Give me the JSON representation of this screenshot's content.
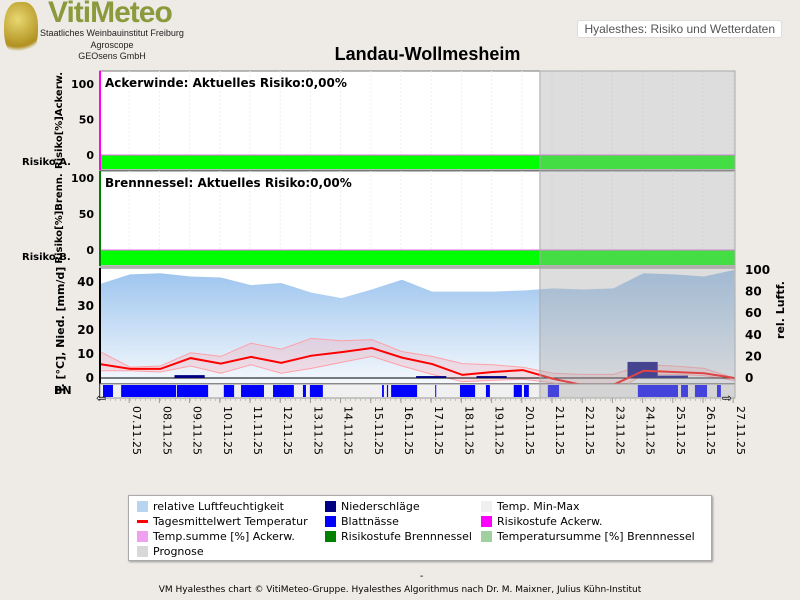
{
  "header": {
    "logo": "VitiMeteo",
    "orgs": [
      "Staatliches Weinbauinstitut Freiburg",
      "Agroscope",
      "GEOsens GmbH"
    ],
    "app_button": "Hyalesthes: Risiko und Wetterdaten"
  },
  "title": "Landau-Wollmesheim",
  "chart_data": [
    {
      "type": "area",
      "title": "Ackerwinde: Aktuelles Risiko:0,00%",
      "ylabel": "Risiko[%]Ackerw.",
      "row_label": "Risiko A.",
      "ylim": [
        0,
        100
      ],
      "yticks": [
        "100",
        "50",
        "0"
      ],
      "risk_level": "low",
      "risk_color": "#00ff00",
      "current_risk": 0
    },
    {
      "type": "area",
      "title": "Brennnessel: Aktuelles Risiko:0,00%",
      "ylabel": "Risiko[%]Brenn.",
      "row_label": "Risiko B.",
      "ylim": [
        0,
        100
      ],
      "yticks": [
        "100",
        "50",
        "0"
      ],
      "risk_level": "low",
      "risk_color": "#00ff00",
      "current_risk": 0
    },
    {
      "type": "line",
      "ylabel": "T. [°C], Nied. [mm/d]",
      "ylabel2": "rel. Luftf.",
      "row_label": "BN",
      "ylim": [
        -5,
        45
      ],
      "ylim2": [
        0,
        100
      ],
      "yticks": [
        "40",
        "30",
        "20",
        "10",
        "0"
      ],
      "yticks2": [
        "100",
        "80",
        "60",
        "40",
        "20",
        "0"
      ],
      "categories": [
        "07.11.25",
        "08.11.25",
        "09.11.25",
        "10.11.25",
        "11.11.25",
        "12.11.25",
        "13.11.25",
        "14.11.25",
        "15.11.25",
        "16.11.25",
        "17.11.25",
        "18.11.25",
        "19.11.25",
        "20.11.25",
        "21.11.25",
        "22.11.25",
        "23.11.25",
        "24.11.25",
        "25.11.25",
        "26.11.25",
        "27.11.25"
      ],
      "forecast_start_day": 14.6,
      "humidity": [
        87,
        96,
        97,
        94,
        93,
        86,
        88,
        79,
        74,
        82,
        91,
        80,
        80,
        80,
        81,
        83,
        82,
        83,
        97,
        96,
        94,
        100
      ],
      "temp_mean": [
        5.8,
        3.8,
        3.8,
        8.3,
        6,
        8.8,
        6.3,
        9.3,
        10.8,
        12.5,
        8.5,
        5.8,
        1.3,
        2.5,
        3.3,
        -0.3,
        -3,
        -2.8,
        3,
        2.5,
        2,
        0
      ],
      "temp_max": [
        11,
        4.5,
        5,
        10.5,
        9,
        14.5,
        12,
        16.5,
        15.5,
        16,
        11,
        9,
        6,
        5.5,
        4.5,
        2,
        1.5,
        1.5,
        5.5,
        5,
        4,
        0
      ],
      "temp_min": [
        3,
        3,
        2.5,
        5,
        2,
        5.5,
        2,
        4,
        6.5,
        9,
        5,
        1.5,
        -1.5,
        -1,
        -0.5,
        -2,
        -5,
        -6,
        1.5,
        1.5,
        1,
        -1
      ],
      "precip": [
        {
          "from": 2.5,
          "to": 3.5,
          "mm": 1.2
        },
        {
          "from": 10.5,
          "to": 11.5,
          "mm": 0.8
        },
        {
          "from": 12.5,
          "to": 13.5,
          "mm": 0.8
        },
        {
          "from": 17.5,
          "to": 18.5,
          "mm": 6.7
        },
        {
          "from": 18.5,
          "to": 19.5,
          "mm": 1
        }
      ],
      "leaf_wetness": [
        [
          0.1,
          0.43
        ],
        [
          0.7,
          2.52
        ],
        [
          2.55,
          3.58
        ],
        [
          4.1,
          4.44
        ],
        [
          4.67,
          5.43
        ],
        [
          5.73,
          6.42
        ],
        [
          6.72,
          6.82
        ],
        [
          6.95,
          7.38
        ],
        [
          9.34,
          9.4
        ],
        [
          9.5,
          9.54
        ],
        [
          9.64,
          10.5
        ],
        [
          11.1,
          11.13
        ],
        [
          11.92,
          12.42
        ],
        [
          12.78,
          12.91
        ],
        [
          13.7,
          13.97
        ],
        [
          14.04,
          14.2
        ],
        [
          14.83,
          15.2
        ],
        [
          17.81,
          19.14
        ],
        [
          19.24,
          19.47
        ],
        [
          19.7,
          20.1
        ],
        [
          20.43,
          20.56
        ]
      ]
    }
  ],
  "legend": [
    {
      "label": "relative Luftfeuchtigkeit",
      "color": "#b8d4f0"
    },
    {
      "label": "Niederschläge",
      "color": "#000080"
    },
    {
      "label": "Temp. Min-Max",
      "color": "#f0f0f0"
    },
    {
      "label": "Tagesmittelwert Temperatur",
      "color": "#ff0000"
    },
    {
      "label": "Blattnässe",
      "color": "#0000ff"
    },
    {
      "label": "Risikostufe Ackerw.",
      "color": "#ff00ff"
    },
    {
      "label": "Temp.summe [%] Ackerw.",
      "color": "#f0a0f0"
    },
    {
      "label": "Risikostufe Brennnessel",
      "color": "#008000"
    },
    {
      "label": "Temperatursumme [%] Brennnessel",
      "color": "#a0d0a0"
    },
    {
      "label": "Prognose",
      "color": "#d8d8d8"
    }
  ],
  "footer": {
    "dash": "-",
    "credit": "VM Hyalesthes chart © VitiMeteo-Gruppe. Hyalesthes Algorithmus nach Dr. M. Maixner, Julius Kühn-Institut"
  }
}
